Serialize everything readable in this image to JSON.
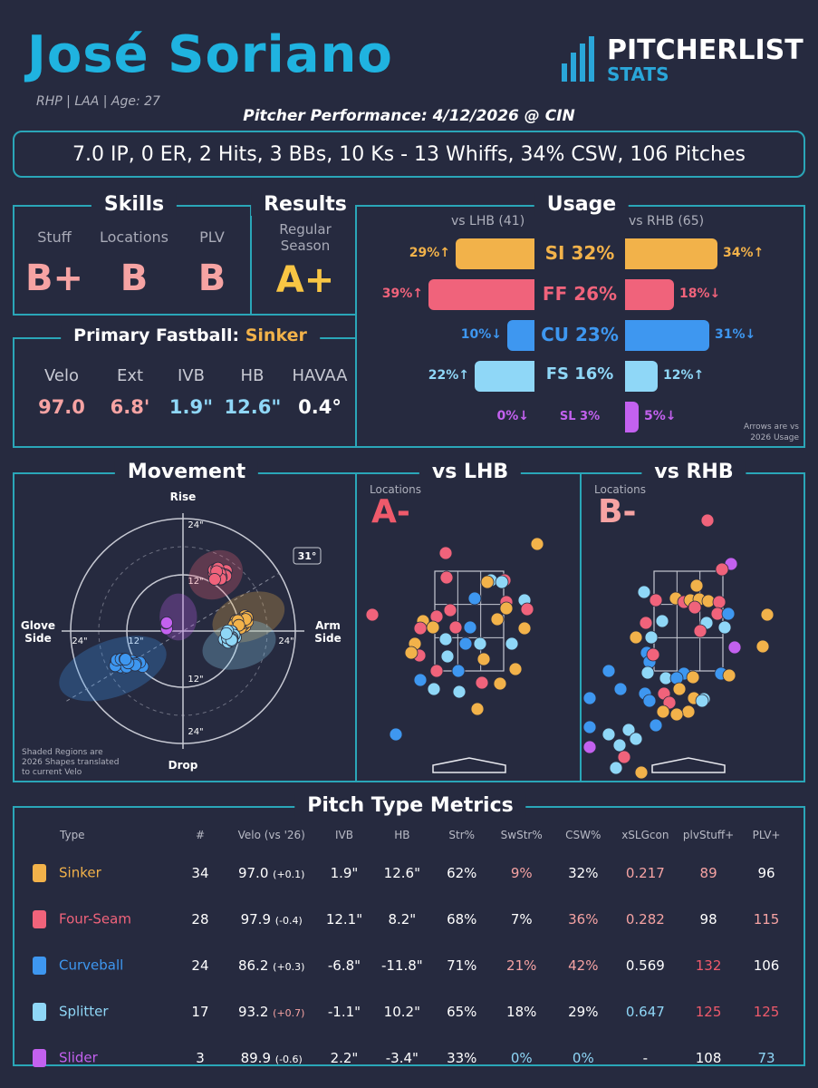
{
  "header": {
    "name": "José Soriano",
    "meta": "RHP | LAA | Age: 27",
    "performance": "Pitcher Performance: 4/12/2026 @ CIN",
    "statline": "7.0 IP, 0 ER, 2 Hits, 3 BBs, 10 Ks - 13 Whiffs, 34% CSW, 106 Pitches",
    "logo_top": "PITCHERLIST",
    "logo_bottom": "STATS"
  },
  "colors": {
    "sinker": "#f2b24a",
    "fourseam": "#f0637b",
    "curveball": "#3e97f0",
    "splitter": "#8fd7f7",
    "slider": "#c361ef",
    "teal": "#2aa6b8",
    "grade": "#f6a3a3",
    "grade_a": "#f8c544",
    "red": "#ef5a6b",
    "blue": "#8fd7f7"
  },
  "skills": {
    "title": "Skills",
    "stuff_label": "Stuff",
    "stuff": "B+",
    "locations_label": "Locations",
    "locations": "B",
    "plv_label": "PLV",
    "plv": "B"
  },
  "results": {
    "title": "Results",
    "label_line1": "Regular",
    "label_line2": "Season",
    "grade": "A+"
  },
  "fastball": {
    "title": "Primary Fastball:",
    "pitch": "Sinker",
    "labels": [
      "Velo",
      "Ext",
      "IVB",
      "HB",
      "HAVAA"
    ],
    "values": [
      "97.0",
      "6.8'",
      "1.9\"",
      "12.6\"",
      "0.4°"
    ]
  },
  "usage": {
    "title": "Usage",
    "lhb_label": "vs LHB (41)",
    "rhb_label": "vs RHB (65)",
    "note_line1": "Arrows are vs",
    "note_line2": "2026 Usage",
    "rows": [
      {
        "label": "SI 32%",
        "lhb": "29%↑",
        "rhb": "34%↑",
        "lhb_val": 29,
        "rhb_val": 34,
        "color": "#f2b24a"
      },
      {
        "label": "FF 26%",
        "lhb": "39%↑",
        "rhb": "18%↓",
        "lhb_val": 39,
        "rhb_val": 18,
        "color": "#f0637b"
      },
      {
        "label": "CU 23%",
        "lhb": "10%↓",
        "rhb": "31%↓",
        "lhb_val": 10,
        "rhb_val": 31,
        "color": "#3e97f0"
      },
      {
        "label": "FS 16%",
        "lhb": "22%↑",
        "rhb": "12%↑",
        "lhb_val": 22,
        "rhb_val": 12,
        "color": "#8fd7f7"
      },
      {
        "label": "SL 3%",
        "lhb": "0%↓",
        "rhb": "5%↓",
        "lhb_val": 0,
        "rhb_val": 5,
        "color": "#c361ef"
      }
    ]
  },
  "movement": {
    "title": "Movement",
    "rise": "Rise",
    "drop": "Drop",
    "glove": "Glove",
    "glove2": "Side",
    "arm": "Arm",
    "arm2": "Side",
    "ring_labels": [
      "24\"",
      "12\"",
      "12\"",
      "24\"",
      "24\"",
      "12\"",
      "12\"",
      "24\""
    ],
    "angle": "31°",
    "note": [
      "Shaded Regions are",
      "2026 Shapes translated",
      "to current Velo"
    ]
  },
  "locations": {
    "lhb_title": "vs LHB",
    "rhb_title": "vs RHB",
    "label": "Locations",
    "lhb_grade": "A-",
    "rhb_grade": "B-"
  },
  "metrics": {
    "title": "Pitch Type Metrics",
    "headers": [
      "Type",
      "#",
      "Velo (vs '26)",
      "IVB",
      "HB",
      "Str%",
      "SwStr%",
      "CSW%",
      "xSLGcon",
      "plvStuff+",
      "PLV+"
    ],
    "rows": [
      {
        "type": "Sinker",
        "n": "34",
        "velo": "97.0",
        "delta": "(+0.1)",
        "ivb": "1.9\"",
        "hb": "12.6\"",
        "str": "62%",
        "swstr": "9%",
        "csw": "32%",
        "xslg": "0.217",
        "stuff": "89",
        "plv": "96"
      },
      {
        "type": "Four-Seam",
        "n": "28",
        "velo": "97.9",
        "delta": "(-0.4)",
        "ivb": "12.1\"",
        "hb": "8.2\"",
        "str": "68%",
        "swstr": "7%",
        "csw": "36%",
        "xslg": "0.282",
        "stuff": "98",
        "plv": "115"
      },
      {
        "type": "Curveball",
        "n": "24",
        "velo": "86.2",
        "delta": "(+0.3)",
        "ivb": "-6.8\"",
        "hb": "-11.8\"",
        "str": "71%",
        "swstr": "21%",
        "csw": "42%",
        "xslg": "0.569",
        "stuff": "132",
        "plv": "106"
      },
      {
        "type": "Splitter",
        "n": "17",
        "velo": "93.2",
        "delta": "(+0.7)",
        "ivb": "-1.1\"",
        "hb": "10.2\"",
        "str": "65%",
        "swstr": "18%",
        "csw": "29%",
        "xslg": "0.647",
        "stuff": "125",
        "plv": "125"
      },
      {
        "type": "Slider",
        "n": "3",
        "velo": "89.9",
        "delta": "(-0.6)",
        "ivb": "2.2\"",
        "hb": "-3.4\"",
        "str": "33%",
        "swstr": "0%",
        "csw": "0%",
        "xslg": "-",
        "stuff": "108",
        "plv": "73"
      }
    ]
  },
  "chart_data": {
    "type": "scatter",
    "movement_centers_inches": [
      {
        "pitch": "Sinker",
        "hb": 12.6,
        "ivb": 1.9,
        "n": 34
      },
      {
        "pitch": "Four-Seam",
        "hb": 8.2,
        "ivb": 12.1,
        "n": 28
      },
      {
        "pitch": "Curveball",
        "hb": -11.8,
        "ivb": -6.8,
        "n": 24
      },
      {
        "pitch": "Splitter",
        "hb": 10.2,
        "ivb": -1.1,
        "n": 17
      },
      {
        "pitch": "Slider",
        "hb": -3.4,
        "ivb": 2.2,
        "n": 3
      }
    ],
    "axis_ring_inches": [
      12,
      24
    ],
    "arm_angle_deg": 31
  }
}
